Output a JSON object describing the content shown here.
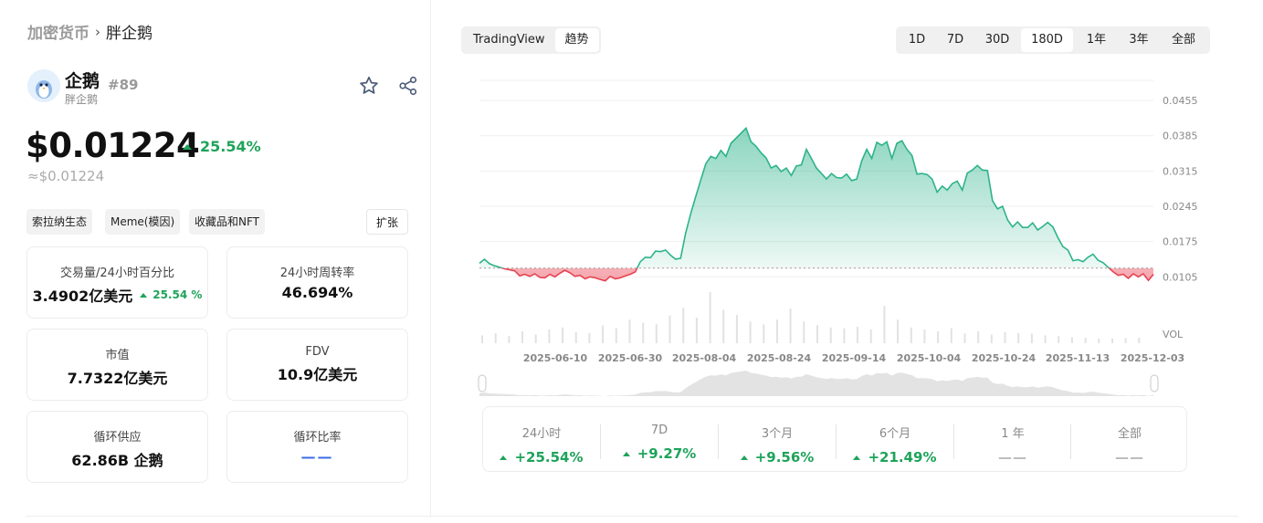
{
  "breadcrumb": {
    "root": "加密货币",
    "current": "胖企鹅"
  },
  "coin": {
    "name": "企鹅",
    "rank": "#89",
    "subtitle": "胖企鹅"
  },
  "price": {
    "value": "$0.01224",
    "change": "25.54%",
    "approx": "≈$0.01224",
    "change_color": "#1ea35a"
  },
  "tags": [
    "索拉纳生态",
    "Meme(模因)",
    "收藏品和NFT"
  ],
  "expand_label": "扩张",
  "stats": [
    {
      "label": "交易量/24小时百分比",
      "value": "3.4902亿美元",
      "change": "25.54 %"
    },
    {
      "label": "24小时周转率",
      "value": "46.694%"
    },
    {
      "label": "市值",
      "value": "7.7322亿美元"
    },
    {
      "label": "FDV",
      "value": "10.9亿美元"
    },
    {
      "label": "循环供应",
      "value": "62.86B 企鹅"
    },
    {
      "label": "循环比率",
      "value": "——"
    }
  ],
  "chart_tabs": [
    {
      "label": "TradingView",
      "active": false
    },
    {
      "label": "趋势",
      "active": true
    }
  ],
  "ranges": [
    {
      "label": "1D",
      "active": false
    },
    {
      "label": "7D",
      "active": false
    },
    {
      "label": "30D",
      "active": false
    },
    {
      "label": "180D",
      "active": true
    },
    {
      "label": "1年",
      "active": false
    },
    {
      "label": "3年",
      "active": false
    },
    {
      "label": "全部",
      "active": false
    }
  ],
  "chart_data": {
    "type": "area",
    "x_ticks": [
      "2025-06-10",
      "2025-06-30",
      "2025-08-04",
      "2025-08-24",
      "2025-09-14",
      "2025-10-04",
      "2025-10-24",
      "2025-11-13",
      "2025-12-03"
    ],
    "y_ticks": [
      "0.0455",
      "0.0385",
      "0.0315",
      "0.0245",
      "0.0175",
      "0.0105"
    ],
    "y_ticks_num": [
      0.0455,
      0.0385,
      0.0315,
      0.0245,
      0.0175,
      0.0105
    ],
    "ylim": [
      0.0082,
      0.0495
    ],
    "baseline": 0.01224,
    "vol_label": "VOL",
    "up_color": "#2db38a",
    "down_color": "#e8414f",
    "series": [
      {
        "name": "",
        "values": [
          0.0132,
          0.014,
          0.0131,
          0.0127,
          0.0124,
          0.0121,
          0.0119,
          0.0117,
          0.0107,
          0.011,
          0.0106,
          0.0111,
          0.0104,
          0.0103,
          0.011,
          0.0105,
          0.0112,
          0.0118,
          0.0113,
          0.0106,
          0.0108,
          0.0101,
          0.0105,
          0.0103,
          0.01,
          0.0097,
          0.0106,
          0.0101,
          0.0103,
          0.0107,
          0.011,
          0.0115,
          0.0135,
          0.0144,
          0.0143,
          0.0156,
          0.0155,
          0.0158,
          0.0148,
          0.014,
          0.0142,
          0.0192,
          0.023,
          0.0264,
          0.0297,
          0.0329,
          0.0344,
          0.034,
          0.0356,
          0.0344,
          0.037,
          0.038,
          0.039,
          0.04,
          0.0373,
          0.0364,
          0.0351,
          0.0341,
          0.0321,
          0.0326,
          0.0314,
          0.0321,
          0.0306,
          0.0325,
          0.0327,
          0.0358,
          0.034,
          0.0321,
          0.031,
          0.0299,
          0.031,
          0.0302,
          0.0301,
          0.0309,
          0.0296,
          0.0299,
          0.0335,
          0.0358,
          0.034,
          0.0372,
          0.0366,
          0.0373,
          0.034,
          0.037,
          0.0375,
          0.0358,
          0.0346,
          0.0309,
          0.031,
          0.0308,
          0.0299,
          0.0273,
          0.0285,
          0.0277,
          0.029,
          0.0295,
          0.0277,
          0.0311,
          0.0317,
          0.0326,
          0.0317,
          0.0316,
          0.0256,
          0.024,
          0.0245,
          0.0218,
          0.0204,
          0.0214,
          0.0203,
          0.0203,
          0.0212,
          0.0198,
          0.0205,
          0.0213,
          0.0204,
          0.0183,
          0.0165,
          0.0158,
          0.0137,
          0.0139,
          0.0135,
          0.0144,
          0.015,
          0.0138,
          0.0133,
          0.0124,
          0.0115,
          0.0108,
          0.011,
          0.0102,
          0.0111,
          0.0105,
          0.0111,
          0.0098,
          0.011
        ]
      }
    ],
    "volume_values": [
      20,
      25,
      18,
      30,
      22,
      35,
      40,
      28,
      26,
      45,
      38,
      60,
      52,
      48,
      70,
      90,
      65,
      130,
      85,
      72,
      55,
      48,
      60,
      88,
      55,
      46,
      40,
      38,
      42,
      35,
      95,
      60,
      40,
      35,
      30,
      38,
      25,
      30,
      22,
      28,
      26,
      24,
      20,
      18,
      15,
      14,
      12,
      12,
      13,
      14
    ]
  },
  "returns": [
    {
      "label": "24小时",
      "value": "+25.54%",
      "has": true
    },
    {
      "label": "7D",
      "value": "+9.27%",
      "has": true
    },
    {
      "label": "3个月",
      "value": "+9.56%",
      "has": true
    },
    {
      "label": "6个月",
      "value": "+21.49%",
      "has": true
    },
    {
      "label": "1 年",
      "value": "——",
      "has": false
    },
    {
      "label": "全部",
      "value": "——",
      "has": false
    }
  ]
}
